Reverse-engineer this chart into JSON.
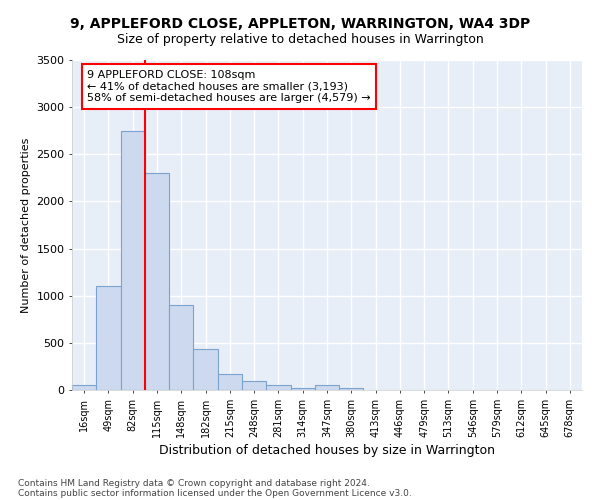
{
  "title1": "9, APPLEFORD CLOSE, APPLETON, WARRINGTON, WA4 3DP",
  "title2": "Size of property relative to detached houses in Warrington",
  "xlabel": "Distribution of detached houses by size in Warrington",
  "ylabel": "Number of detached properties",
  "bar_color": "#ccd9ee",
  "bar_edge_color": "#7ba3d0",
  "bg_color": "#e8eef8",
  "grid_color": "#ffffff",
  "annotation_line1": "9 APPLEFORD CLOSE: 108sqm",
  "annotation_line2": "← 41% of detached houses are smaller (3,193)",
  "annotation_line3": "58% of semi-detached houses are larger (4,579) →",
  "categories": [
    "16sqm",
    "49sqm",
    "82sqm",
    "115sqm",
    "148sqm",
    "182sqm",
    "215sqm",
    "248sqm",
    "281sqm",
    "314sqm",
    "347sqm",
    "380sqm",
    "413sqm",
    "446sqm",
    "479sqm",
    "513sqm",
    "546sqm",
    "579sqm",
    "612sqm",
    "645sqm",
    "678sqm"
  ],
  "values": [
    50,
    1100,
    2750,
    2300,
    900,
    430,
    175,
    100,
    50,
    25,
    50,
    25,
    5,
    5,
    3,
    2,
    2,
    1,
    1,
    1,
    1
  ],
  "ylim": [
    0,
    3500
  ],
  "yticks": [
    0,
    500,
    1000,
    1500,
    2000,
    2500,
    3000,
    3500
  ],
  "red_line_bin": 2.5,
  "footer1": "Contains HM Land Registry data © Crown copyright and database right 2024.",
  "footer2": "Contains public sector information licensed under the Open Government Licence v3.0."
}
